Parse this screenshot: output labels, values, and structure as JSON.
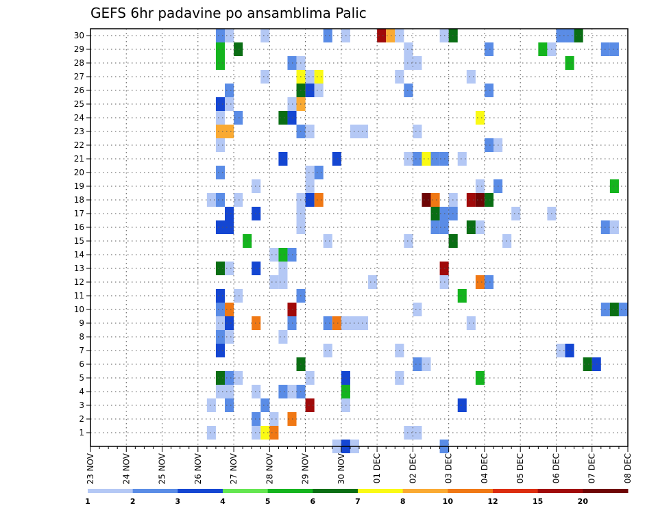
{
  "chart_data": {
    "type": "heatmap",
    "title": "GEFS 6hr padavine po ansamblima Palic",
    "xlabel": "",
    "ylabel": "",
    "x_ticks": [
      "23 NOV",
      "24 NOV",
      "25 NOV",
      "26 NOV",
      "27 NOV",
      "28 NOV",
      "29 NOV",
      "30 NOV",
      "01 DEC",
      "02 DEC",
      "03 DEC",
      "04 DEC",
      "05 DEC",
      "06 DEC",
      "07 DEC",
      "08 DEC"
    ],
    "xlim": [
      "23 NOV 00Z",
      "08 DEC 00Z"
    ],
    "x_step": "6h",
    "y_ticks": [
      "1",
      "2",
      "3",
      "4",
      "5",
      "6",
      "7",
      "8",
      "9",
      "10",
      "11",
      "12",
      "13",
      "14",
      "15",
      "16",
      "17",
      "18",
      "19",
      "20",
      "21",
      "22",
      "23",
      "24",
      "25",
      "26",
      "27",
      "28",
      "29",
      "30"
    ],
    "ylim": [
      0,
      30
    ],
    "grid": true,
    "colorbar": {
      "placement": "bottom",
      "labels": [
        "1",
        "2",
        "3",
        "4",
        "5",
        "6",
        "7",
        "8",
        "10",
        "12",
        "15",
        "20"
      ],
      "colors": [
        "#b4c8f5",
        "#5a8ce6",
        "#1446d2",
        "#64e650",
        "#14b41e",
        "#0a6e14",
        "#fafa14",
        "#faaa32",
        "#f07814",
        "#dc2d0f",
        "#a00a0a",
        "#6e0505"
      ]
    },
    "cells": [
      [
        "26 NOV 12Z",
        30,
        2
      ],
      [
        "26 NOV 18Z",
        30,
        1
      ],
      [
        "27 NOV 18Z",
        30,
        1
      ],
      [
        "29 NOV 12Z",
        30,
        2
      ],
      [
        "30 NOV 00Z",
        30,
        1
      ],
      [
        "01 DEC 00Z",
        30,
        15
      ],
      [
        "01 DEC 06Z",
        30,
        8
      ],
      [
        "01 DEC 12Z",
        30,
        1
      ],
      [
        "02 DEC 18Z",
        30,
        1
      ],
      [
        "03 DEC 00Z",
        30,
        6
      ],
      [
        "06 DEC 00Z",
        30,
        2
      ],
      [
        "06 DEC 06Z",
        30,
        2
      ],
      [
        "06 DEC 12Z",
        30,
        6
      ],
      [
        "26 NOV 12Z",
        29,
        5
      ],
      [
        "27 NOV 00Z",
        29,
        6
      ],
      [
        "01 DEC 18Z",
        29,
        1
      ],
      [
        "04 DEC 00Z",
        29,
        2
      ],
      [
        "05 DEC 12Z",
        29,
        5
      ],
      [
        "05 DEC 18Z",
        29,
        1
      ],
      [
        "07 DEC 06Z",
        29,
        2
      ],
      [
        "07 DEC 12Z",
        29,
        2
      ],
      [
        "26 NOV 12Z",
        28,
        5
      ],
      [
        "28 NOV 12Z",
        28,
        2
      ],
      [
        "28 NOV 18Z",
        28,
        1
      ],
      [
        "01 DEC 18Z",
        28,
        1
      ],
      [
        "02 DEC 00Z",
        28,
        1
      ],
      [
        "06 DEC 06Z",
        28,
        5
      ],
      [
        "27 NOV 18Z",
        27,
        1
      ],
      [
        "28 NOV 18Z",
        27,
        7
      ],
      [
        "29 NOV 00Z",
        27,
        1
      ],
      [
        "29 NOV 06Z",
        27,
        7
      ],
      [
        "01 DEC 12Z",
        27,
        1
      ],
      [
        "03 DEC 12Z",
        27,
        1
      ],
      [
        "26 NOV 18Z",
        26,
        2
      ],
      [
        "28 NOV 18Z",
        26,
        6
      ],
      [
        "29 NOV 00Z",
        26,
        3
      ],
      [
        "29 NOV 06Z",
        26,
        1
      ],
      [
        "01 DEC 18Z",
        26,
        2
      ],
      [
        "04 DEC 00Z",
        26,
        2
      ],
      [
        "26 NOV 12Z",
        25,
        3
      ],
      [
        "26 NOV 18Z",
        25,
        1
      ],
      [
        "28 NOV 12Z",
        25,
        1
      ],
      [
        "28 NOV 18Z",
        25,
        8
      ],
      [
        "26 NOV 12Z",
        24,
        1
      ],
      [
        "27 NOV 00Z",
        24,
        2
      ],
      [
        "28 NOV 06Z",
        24,
        6
      ],
      [
        "28 NOV 12Z",
        24,
        3
      ],
      [
        "03 DEC 18Z",
        24,
        7
      ],
      [
        "26 NOV 12Z",
        23,
        8
      ],
      [
        "26 NOV 18Z",
        23,
        8
      ],
      [
        "28 NOV 18Z",
        23,
        2
      ],
      [
        "29 NOV 00Z",
        23,
        1
      ],
      [
        "30 NOV 06Z",
        23,
        1
      ],
      [
        "30 NOV 12Z",
        23,
        1
      ],
      [
        "02 DEC 00Z",
        23,
        1
      ],
      [
        "26 NOV 12Z",
        22,
        1
      ],
      [
        "04 DEC 00Z",
        22,
        2
      ],
      [
        "04 DEC 06Z",
        22,
        1
      ],
      [
        "28 NOV 06Z",
        21,
        3
      ],
      [
        "29 NOV 18Z",
        21,
        3
      ],
      [
        "01 DEC 18Z",
        21,
        1
      ],
      [
        "02 DEC 00Z",
        21,
        2
      ],
      [
        "02 DEC 06Z",
        21,
        7
      ],
      [
        "02 DEC 12Z",
        21,
        2
      ],
      [
        "02 DEC 18Z",
        21,
        2
      ],
      [
        "03 DEC 06Z",
        21,
        1
      ],
      [
        "26 NOV 12Z",
        20,
        2
      ],
      [
        "29 NOV 00Z",
        20,
        1
      ],
      [
        "29 NOV 06Z",
        20,
        2
      ],
      [
        "27 NOV 12Z",
        19,
        1
      ],
      [
        "29 NOV 00Z",
        19,
        1
      ],
      [
        "03 DEC 18Z",
        19,
        1
      ],
      [
        "04 DEC 06Z",
        19,
        2
      ],
      [
        "07 DEC 12Z",
        19,
        5
      ],
      [
        "26 NOV 06Z",
        18,
        1
      ],
      [
        "26 NOV 12Z",
        18,
        2
      ],
      [
        "27 NOV 00Z",
        18,
        1
      ],
      [
        "28 NOV 18Z",
        18,
        1
      ],
      [
        "29 NOV 00Z",
        18,
        3
      ],
      [
        "29 NOV 06Z",
        18,
        10
      ],
      [
        "02 DEC 06Z",
        18,
        20
      ],
      [
        "02 DEC 12Z",
        18,
        10
      ],
      [
        "03 DEC 00Z",
        18,
        1
      ],
      [
        "03 DEC 12Z",
        18,
        15
      ],
      [
        "03 DEC 18Z",
        18,
        20
      ],
      [
        "04 DEC 00Z",
        18,
        6
      ],
      [
        "26 NOV 18Z",
        17,
        3
      ],
      [
        "27 NOV 12Z",
        17,
        3
      ],
      [
        "28 NOV 18Z",
        17,
        1
      ],
      [
        "02 DEC 12Z",
        17,
        6
      ],
      [
        "02 DEC 18Z",
        17,
        2
      ],
      [
        "03 DEC 00Z",
        17,
        2
      ],
      [
        "04 DEC 18Z",
        17,
        1
      ],
      [
        "05 DEC 18Z",
        17,
        1
      ],
      [
        "26 NOV 12Z",
        16,
        3
      ],
      [
        "26 NOV 18Z",
        16,
        3
      ],
      [
        "28 NOV 18Z",
        16,
        1
      ],
      [
        "02 DEC 12Z",
        16,
        2
      ],
      [
        "02 DEC 18Z",
        16,
        2
      ],
      [
        "03 DEC 12Z",
        16,
        6
      ],
      [
        "03 DEC 18Z",
        16,
        1
      ],
      [
        "07 DEC 06Z",
        16,
        2
      ],
      [
        "07 DEC 12Z",
        16,
        1
      ],
      [
        "27 NOV 06Z",
        15,
        5
      ],
      [
        "29 NOV 12Z",
        15,
        1
      ],
      [
        "01 DEC 18Z",
        15,
        1
      ],
      [
        "03 DEC 00Z",
        15,
        6
      ],
      [
        "04 DEC 12Z",
        15,
        1
      ],
      [
        "28 NOV 00Z",
        14,
        1
      ],
      [
        "28 NOV 06Z",
        14,
        5
      ],
      [
        "28 NOV 12Z",
        14,
        2
      ],
      [
        "26 NOV 12Z",
        13,
        6
      ],
      [
        "26 NOV 18Z",
        13,
        1
      ],
      [
        "27 NOV 12Z",
        13,
        3
      ],
      [
        "28 NOV 06Z",
        13,
        1
      ],
      [
        "02 DEC 18Z",
        13,
        15
      ],
      [
        "28 NOV 00Z",
        12,
        1
      ],
      [
        "28 NOV 06Z",
        12,
        1
      ],
      [
        "30 NOV 18Z",
        12,
        1
      ],
      [
        "02 DEC 18Z",
        12,
        1
      ],
      [
        "03 DEC 18Z",
        12,
        10
      ],
      [
        "04 DEC 00Z",
        12,
        2
      ],
      [
        "26 NOV 12Z",
        11,
        3
      ],
      [
        "27 NOV 00Z",
        11,
        1
      ],
      [
        "28 NOV 18Z",
        11,
        2
      ],
      [
        "03 DEC 06Z",
        11,
        5
      ],
      [
        "26 NOV 12Z",
        10,
        2
      ],
      [
        "26 NOV 18Z",
        10,
        10
      ],
      [
        "28 NOV 12Z",
        10,
        15
      ],
      [
        "02 DEC 00Z",
        10,
        1
      ],
      [
        "07 DEC 06Z",
        10,
        2
      ],
      [
        "07 DEC 12Z",
        10,
        6
      ],
      [
        "07 DEC 18Z",
        10,
        2
      ],
      [
        "26 NOV 12Z",
        9,
        1
      ],
      [
        "26 NOV 18Z",
        9,
        3
      ],
      [
        "27 NOV 12Z",
        9,
        10
      ],
      [
        "28 NOV 12Z",
        9,
        2
      ],
      [
        "29 NOV 12Z",
        9,
        2
      ],
      [
        "29 NOV 18Z",
        9,
        10
      ],
      [
        "30 NOV 00Z",
        9,
        1
      ],
      [
        "30 NOV 06Z",
        9,
        1
      ],
      [
        "30 NOV 12Z",
        9,
        1
      ],
      [
        "03 DEC 12Z",
        9,
        1
      ],
      [
        "26 NOV 12Z",
        8,
        2
      ],
      [
        "26 NOV 18Z",
        8,
        1
      ],
      [
        "28 NOV 06Z",
        8,
        1
      ],
      [
        "26 NOV 12Z",
        7,
        3
      ],
      [
        "29 NOV 12Z",
        7,
        1
      ],
      [
        "01 DEC 12Z",
        7,
        1
      ],
      [
        "06 DEC 00Z",
        7,
        1
      ],
      [
        "06 DEC 06Z",
        7,
        3
      ],
      [
        "28 NOV 18Z",
        6,
        6
      ],
      [
        "02 DEC 00Z",
        6,
        2
      ],
      [
        "02 DEC 06Z",
        6,
        1
      ],
      [
        "06 DEC 18Z",
        6,
        6
      ],
      [
        "07 DEC 00Z",
        6,
        3
      ],
      [
        "26 NOV 12Z",
        5,
        6
      ],
      [
        "26 NOV 18Z",
        5,
        2
      ],
      [
        "27 NOV 00Z",
        5,
        1
      ],
      [
        "29 NOV 00Z",
        5,
        1
      ],
      [
        "30 NOV 00Z",
        5,
        3
      ],
      [
        "01 DEC 12Z",
        5,
        1
      ],
      [
        "03 DEC 18Z",
        5,
        5
      ],
      [
        "26 NOV 12Z",
        4,
        1
      ],
      [
        "26 NOV 18Z",
        4,
        1
      ],
      [
        "27 NOV 12Z",
        4,
        1
      ],
      [
        "28 NOV 06Z",
        4,
        2
      ],
      [
        "28 NOV 12Z",
        4,
        1
      ],
      [
        "28 NOV 18Z",
        4,
        2
      ],
      [
        "30 NOV 00Z",
        4,
        5
      ],
      [
        "26 NOV 06Z",
        3,
        1
      ],
      [
        "26 NOV 18Z",
        3,
        2
      ],
      [
        "27 NOV 18Z",
        3,
        2
      ],
      [
        "29 NOV 00Z",
        3,
        15
      ],
      [
        "30 NOV 00Z",
        3,
        1
      ],
      [
        "03 DEC 06Z",
        3,
        3
      ],
      [
        "27 NOV 12Z",
        2,
        2
      ],
      [
        "28 NOV 00Z",
        2,
        1
      ],
      [
        "28 NOV 12Z",
        2,
        10
      ],
      [
        "26 NOV 06Z",
        1,
        1
      ],
      [
        "27 NOV 12Z",
        1,
        1
      ],
      [
        "27 NOV 18Z",
        1,
        7
      ],
      [
        "28 NOV 00Z",
        1,
        10
      ],
      [
        "01 DEC 18Z",
        1,
        1
      ],
      [
        "02 DEC 00Z",
        1,
        1
      ],
      [
        "29 NOV 18Z",
        0,
        1
      ],
      [
        "30 NOV 00Z",
        0,
        3
      ],
      [
        "30 NOV 06Z",
        0,
        1
      ],
      [
        "02 DEC 18Z",
        0,
        2
      ]
    ]
  }
}
